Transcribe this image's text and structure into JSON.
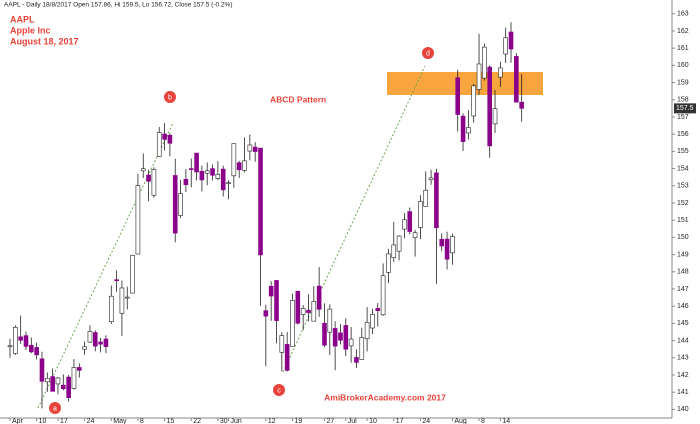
{
  "chart_data": {
    "type": "candlestick",
    "header": "AAPL - Daily 18/8/2017 Open 157.86, Hi 159.5, Lo 156.72, Close 157.5 (-0.2%)",
    "title_lines": [
      "AAPL",
      "Apple Inc",
      "August 18, 2017"
    ],
    "pattern_label": "ABCD Pattern",
    "watermark": "AmiBrokerAcademy.com  2017",
    "pattern_points": [
      "a",
      "b",
      "c",
      "d"
    ],
    "last_price": 157.5,
    "up_color": "#ffffff",
    "down_color": "#8b008b",
    "wick_color": "#222222",
    "grid": false,
    "ylim": [
      139.5,
      163.8
    ],
    "yticks": [
      140,
      141,
      142,
      143,
      144,
      145,
      146,
      147,
      148,
      149,
      150,
      151,
      152,
      153,
      154,
      155,
      156,
      157,
      158,
      159,
      160,
      161,
      162,
      163
    ],
    "categories": [
      "Apr",
      null,
      null,
      null,
      null,
      "10",
      null,
      null,
      null,
      "17",
      null,
      null,
      null,
      null,
      "24",
      null,
      null,
      null,
      null,
      "May",
      null,
      null,
      null,
      null,
      "8",
      null,
      null,
      null,
      null,
      "15",
      null,
      null,
      null,
      null,
      "22",
      null,
      null,
      null,
      null,
      "30",
      null,
      "Jun",
      null,
      null,
      null,
      null,
      null,
      null,
      "12",
      null,
      null,
      null,
      null,
      "19",
      null,
      null,
      null,
      null,
      null,
      "27",
      null,
      null,
      null,
      "Jul",
      null,
      null,
      null,
      "10",
      null,
      null,
      null,
      null,
      "17",
      null,
      null,
      null,
      null,
      "24",
      null,
      null,
      null,
      null,
      null,
      "Aug",
      null,
      null,
      null,
      null,
      "8",
      null,
      null,
      null,
      "14",
      null,
      null,
      null,
      null
    ],
    "open": [
      143.7,
      143.25,
      144.22,
      144.29,
      143.73,
      143.6,
      142.94,
      141.6,
      141.91,
      141.48,
      141.41,
      141.88,
      141.22,
      142.44,
      143.5,
      143.91,
      144.47,
      143.92,
      144.09,
      145.1,
      147.54,
      145.59,
      146.52,
      146.76,
      149.03,
      153.87,
      153.63,
      152.45,
      154.7,
      156.01,
      155.94,
      153.6,
      151.27,
      153.38,
      154.0,
      154.9,
      153.84,
      153.73,
      154.0,
      153.42,
      153.97,
      153.17,
      153.58,
      154.34,
      153.9,
      155.02,
      155.25,
      155.19,
      145.74,
      147.16,
      147.5,
      143.32,
      143.78,
      143.66,
      146.87,
      145.52,
      145.77,
      145.13,
      147.17,
      145.01,
      144.49,
      144.71,
      144.45,
      144.88,
      143.69,
      143.02,
      142.9,
      144.11,
      144.73,
      145.87,
      145.5,
      147.97,
      148.82,
      149.2,
      150.48,
      151.5,
      149.99,
      150.58,
      151.8,
      153.35,
      153.75,
      149.89,
      149.9,
      149.1,
      159.28,
      157.05,
      156.07,
      157.06,
      158.6,
      159.26,
      159.9,
      156.6,
      159.32,
      160.66,
      161.94,
      160.52,
      157.86
    ],
    "high": [
      144.1,
      144.89,
      145.46,
      144.52,
      144.18,
      143.88,
      143.35,
      142.15,
      142.38,
      141.88,
      142.04,
      142.0,
      142.92,
      142.68,
      143.95,
      144.9,
      144.6,
      144.16,
      144.3,
      147.2,
      148.09,
      147.49,
      147.14,
      148.98,
      153.7,
      154.88,
      153.94,
      154.07,
      156.42,
      156.65,
      156.06,
      154.57,
      153.34,
      153.98,
      154.58,
      154.9,
      154.17,
      154.35,
      154.24,
      154.43,
      154.17,
      153.33,
      155.45,
      154.45,
      155.81,
      155.98,
      155.54,
      155.19,
      146.09,
      147.45,
      147.5,
      144.48,
      144.5,
      146.74,
      146.87,
      146.07,
      146.7,
      147.16,
      148.28,
      146.16,
      146.11,
      145.13,
      144.96,
      145.3,
      144.79,
      143.5,
      144.75,
      145.95,
      145.85,
      146.18,
      148.49,
      149.33,
      150.9,
      150.13,
      151.42,
      151.74,
      150.44,
      152.44,
      153.84,
      153.93,
      153.99,
      150.23,
      150.33,
      150.22,
      159.75,
      157.21,
      157.4,
      158.92,
      161.83,
      161.27,
      160.0,
      158.57,
      160.21,
      162.2,
      162.51,
      160.71,
      159.5
    ],
    "low": [
      143.0,
      143.17,
      143.81,
      143.45,
      143.27,
      142.9,
      140.06,
      141.01,
      141.05,
      140.87,
      141.11,
      140.45,
      141.16,
      141.85,
      143.18,
      143.87,
      143.38,
      143.31,
      143.27,
      144.96,
      146.84,
      144.27,
      145.81,
      146.76,
      149.03,
      153.45,
      152.11,
      152.31,
      154.67,
      155.05,
      154.72,
      149.71,
      151.13,
      152.63,
      152.91,
      153.31,
      152.67,
      153.03,
      153.31,
      153.33,
      152.38,
      152.22,
      152.89,
      153.46,
      153.78,
      154.48,
      154.4,
      146.02,
      142.51,
      145.15,
      143.84,
      142.21,
      142.2,
      143.66,
      144.94,
      144.61,
      145.12,
      145.11,
      145.38,
      143.62,
      143.16,
      142.28,
      143.78,
      143.1,
      142.72,
      142.41,
      142.9,
      143.37,
      144.38,
      144.82,
      145.44,
      147.33,
      148.57,
      148.67,
      149.95,
      150.19,
      148.88,
      149.9,
      151.8,
      153.06,
      147.3,
      149.19,
      148.13,
      148.41,
      156.16,
      155.02,
      155.69,
      156.67,
      158.27,
      159.11,
      154.63,
      156.07,
      158.75,
      160.14,
      160.15,
      157.84,
      156.72
    ],
    "close": [
      143.7,
      144.77,
      144.02,
      143.66,
      143.34,
      143.17,
      141.63,
      141.8,
      141.05,
      141.83,
      141.2,
      140.68,
      142.44,
      142.27,
      143.64,
      144.53,
      143.68,
      143.79,
      143.65,
      146.58,
      147.51,
      147.06,
      146.53,
      148.96,
      153.01,
      153.99,
      153.26,
      153.95,
      156.1,
      155.7,
      155.47,
      150.25,
      152.54,
      153.06,
      153.99,
      153.8,
      153.34,
      153.87,
      153.61,
      153.67,
      152.76,
      153.18,
      155.45,
      153.93,
      154.45,
      155.37,
      154.99,
      148.98,
      145.42,
      146.59,
      145.16,
      144.29,
      142.27,
      146.34,
      145.01,
      145.87,
      145.63,
      146.28,
      145.82,
      143.73,
      145.83,
      143.68,
      144.02,
      143.5,
      144.09,
      142.73,
      144.18,
      145.06,
      145.53,
      145.74,
      147.77,
      149.04,
      149.56,
      150.08,
      151.02,
      150.34,
      150.27,
      152.09,
      152.74,
      153.46,
      150.56,
      149.5,
      148.73,
      150.05,
      157.14,
      155.57,
      156.39,
      158.81,
      160.08,
      161.06,
      155.32,
      157.48,
      159.85,
      161.6,
      160.95,
      157.86,
      157.5
    ]
  }
}
